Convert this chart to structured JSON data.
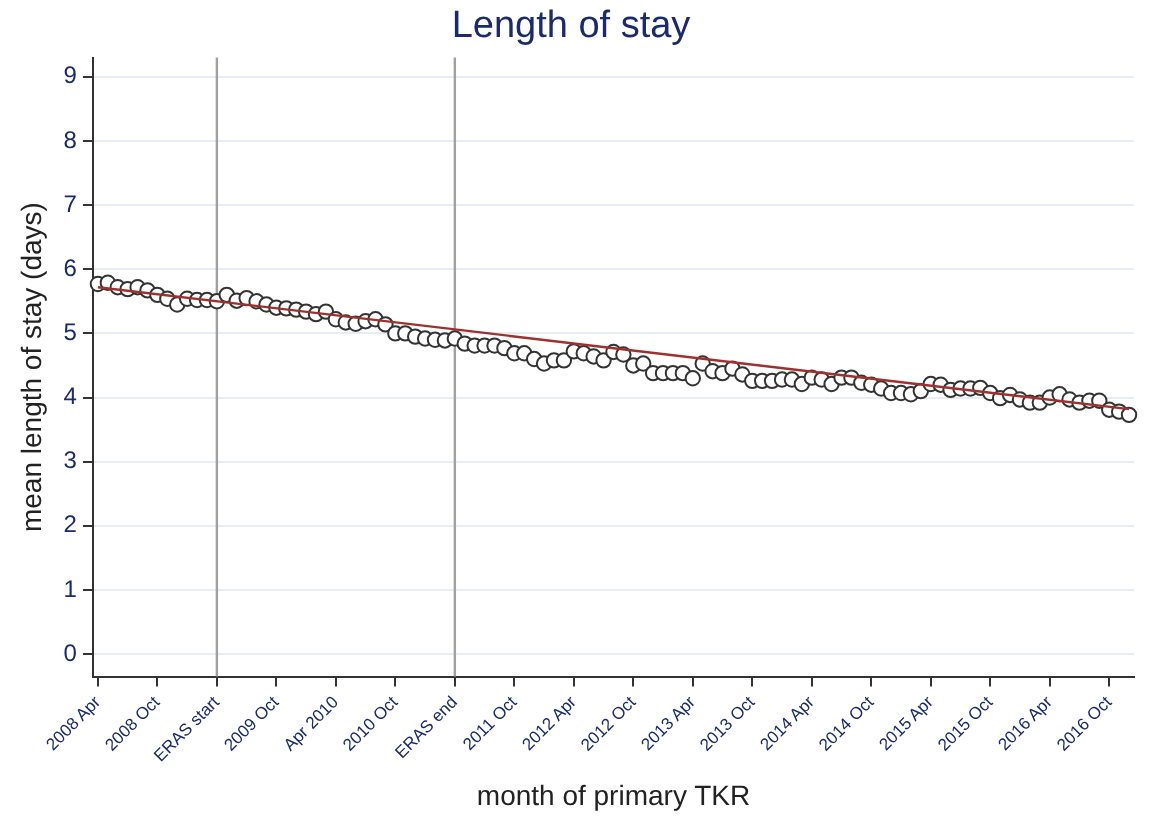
{
  "chart_data": {
    "type": "scatter",
    "title": "Length of stay",
    "xlabel": "month of primary TKR",
    "ylabel": "mean length of stay (days)",
    "categories": [
      "2008 Apr",
      null,
      null,
      null,
      null,
      null,
      "2008 Oct",
      null,
      null,
      null,
      null,
      null,
      "ERAS start",
      null,
      null,
      null,
      null,
      null,
      "2009 Oct",
      null,
      null,
      null,
      null,
      null,
      "Apr 2010",
      null,
      null,
      null,
      null,
      null,
      "2010 Oct",
      null,
      null,
      null,
      null,
      null,
      "ERAS end",
      null,
      null,
      null,
      null,
      null,
      "2011 Oct",
      null,
      null,
      null,
      null,
      null,
      "2012 Apr",
      null,
      null,
      null,
      null,
      null,
      "2012 Oct",
      null,
      null,
      null,
      null,
      null,
      "2013 Apr",
      null,
      null,
      null,
      null,
      null,
      "2013 Oct",
      null,
      null,
      null,
      null,
      null,
      "2014 Apr",
      null,
      null,
      null,
      null,
      null,
      "2014 Oct",
      null,
      null,
      null,
      null,
      null,
      "2015 Apr",
      null,
      null,
      null,
      null,
      null,
      "2015 Oct",
      null,
      null,
      null,
      null,
      null,
      "2016 Apr",
      null,
      null,
      null,
      null,
      null,
      "2016 Oct",
      null,
      null
    ],
    "series": [
      {
        "color": "#333333",
        "marker": "circle",
        "values": [
          5.77,
          5.79,
          5.72,
          5.69,
          5.72,
          5.67,
          5.6,
          5.54,
          5.45,
          5.54,
          5.52,
          5.52,
          5.5,
          5.6,
          5.51,
          5.55,
          5.5,
          5.45,
          5.4,
          5.39,
          5.37,
          5.34,
          5.3,
          5.34,
          5.22,
          5.17,
          5.15,
          5.19,
          5.22,
          5.14,
          5.0,
          5.0,
          4.95,
          4.92,
          4.9,
          4.89,
          4.92,
          4.84,
          4.81,
          4.81,
          4.81,
          4.77,
          4.69,
          4.69,
          4.6,
          4.53,
          4.58,
          4.58,
          4.72,
          4.69,
          4.64,
          4.58,
          4.71,
          4.67,
          4.5,
          4.53,
          4.38,
          4.38,
          4.38,
          4.38,
          4.3,
          4.53,
          4.41,
          4.38,
          4.45,
          4.36,
          4.26,
          4.26,
          4.26,
          4.28,
          4.28,
          4.21,
          4.31,
          4.28,
          4.21,
          4.31,
          4.31,
          4.23,
          4.2,
          4.14,
          4.07,
          4.07,
          4.05,
          4.1,
          4.21,
          4.2,
          4.12,
          4.14,
          4.14,
          4.15,
          4.07,
          3.99,
          4.04,
          3.97,
          3.92,
          3.92,
          4.0,
          4.05,
          3.97,
          3.92,
          3.95,
          3.95,
          3.81,
          3.78,
          3.73
        ]
      },
      {
        "type": "line",
        "color": "#a03030",
        "marker": "none",
        "values": [
          5.72,
          null,
          null,
          null,
          null,
          null,
          null,
          null,
          null,
          null,
          null,
          null,
          null,
          null,
          null,
          null,
          null,
          null,
          null,
          null,
          null,
          null,
          null,
          null,
          null,
          null,
          null,
          null,
          null,
          null,
          null,
          null,
          null,
          null,
          null,
          null,
          null,
          null,
          null,
          null,
          null,
          null,
          null,
          null,
          null,
          null,
          null,
          null,
          null,
          null,
          null,
          null,
          null,
          null,
          null,
          null,
          null,
          null,
          null,
          null,
          null,
          null,
          null,
          null,
          null,
          null,
          null,
          null,
          null,
          null,
          null,
          null,
          null,
          null,
          null,
          null,
          null,
          null,
          null,
          null,
          null,
          null,
          null,
          null,
          null,
          null,
          null,
          null,
          null,
          null,
          null,
          null,
          null,
          null,
          null,
          null,
          null,
          null,
          null,
          null,
          null,
          null,
          null,
          null,
          3.82
        ]
      }
    ],
    "ylim": [
      -0.35,
      9.3
    ],
    "yticks": [
      0,
      1,
      2,
      3,
      4,
      5,
      6,
      7,
      8,
      9
    ],
    "grid": "y",
    "legend": false,
    "ref_lines": [
      {
        "axis": "x",
        "value": "ERAS start",
        "color": "#a0a0a0"
      },
      {
        "axis": "x",
        "value": "ERAS end",
        "color": "#a0a0a0"
      }
    ]
  }
}
